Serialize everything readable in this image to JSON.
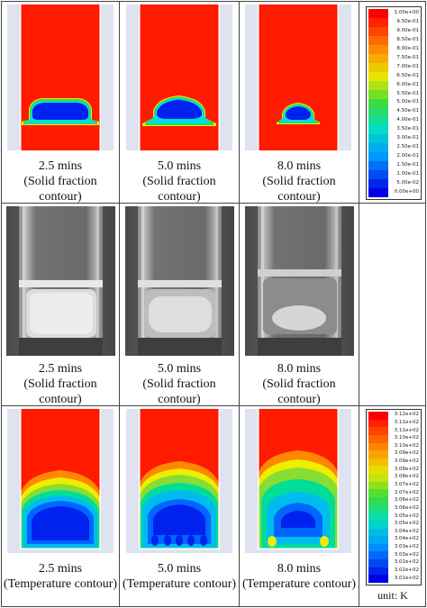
{
  "rows": [
    {
      "kind": "solid-fraction-sim",
      "captions": [
        {
          "time": "2.5 mins",
          "label": "(Solid fraction",
          "label2": "contour)"
        },
        {
          "time": "5.0 mins",
          "label": "(Solid fraction",
          "label2": "contour)"
        },
        {
          "time": "8.0 mins",
          "label": "(Solid fraction",
          "label2": "contour)"
        }
      ]
    },
    {
      "kind": "experiment-photo",
      "captions": [
        {
          "time": "2.5 mins",
          "label": "(Solid fraction",
          "label2": "contour)"
        },
        {
          "time": "5.0 mins",
          "label": "(Solid fraction",
          "label2": "contour)"
        },
        {
          "time": "8.0 mins",
          "label": "(Solid fraction",
          "label2": "contour)"
        }
      ]
    },
    {
      "kind": "temperature-sim",
      "captions": [
        {
          "time": "2.5 mins",
          "label": "(Temperature contour)"
        },
        {
          "time": "5.0 mins",
          "label": "(Temperature contour)"
        },
        {
          "time": "8.0 mins",
          "label": "(Temperature contour)"
        }
      ]
    }
  ],
  "legend_solid": {
    "ticks": [
      "1.00e+00",
      "9.50e-01",
      "9.00e-01",
      "8.50e-01",
      "8.00e-01",
      "7.50e-01",
      "7.00e-01",
      "6.50e-01",
      "6.00e-01",
      "5.50e-01",
      "5.00e-01",
      "4.50e-01",
      "4.00e-01",
      "3.50e-01",
      "3.00e-01",
      "2.50e-01",
      "2.00e-01",
      "1.50e-01",
      "1.00e-01",
      "5.00e-02",
      "0.00e+00"
    ]
  },
  "legend_temp": {
    "ticks": [
      "3.12e+02",
      "3.11e+02",
      "3.11e+02",
      "3.10e+02",
      "3.10e+02",
      "3.09e+02",
      "3.09e+02",
      "3.08e+02",
      "3.08e+02",
      "3.07e+02",
      "3.07e+02",
      "3.06e+02",
      "3.06e+02",
      "3.05e+02",
      "3.05e+02",
      "3.04e+02",
      "3.04e+02",
      "3.03e+02",
      "3.03e+02",
      "3.02e+02",
      "3.02e+02",
      "3.01e+02"
    ],
    "unit": "unit: K"
  },
  "colors": {
    "red": "#ff1a00",
    "blue": "#0022ee",
    "cyan": "#00dddd",
    "green": "#33dd33",
    "yellow": "#eeee00",
    "orange": "#ff8800"
  }
}
